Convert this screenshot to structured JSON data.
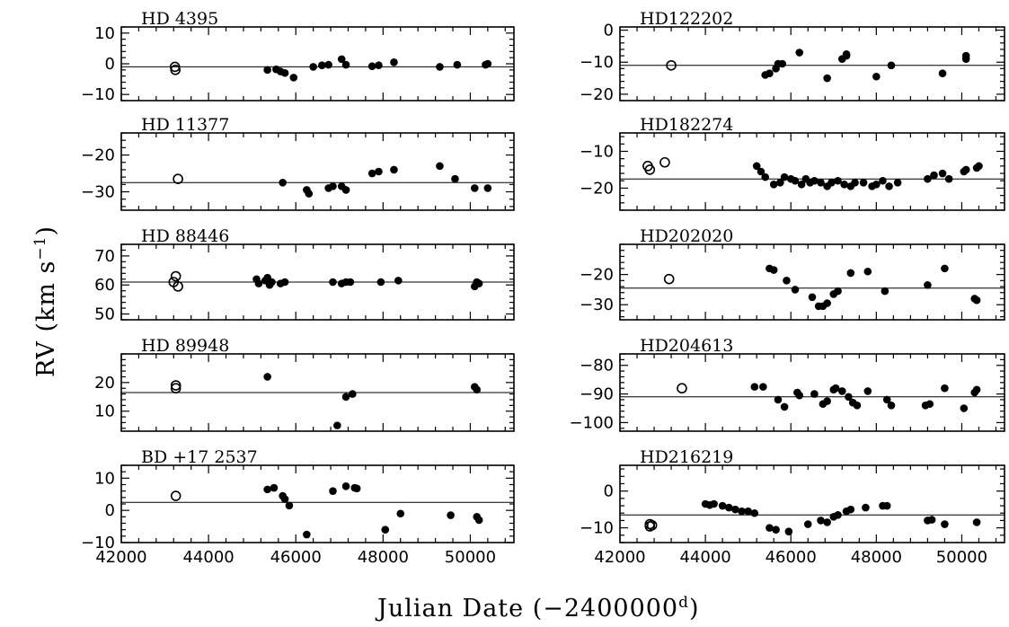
{
  "figure": {
    "xlabel": "Julian Date (−2400000",
    "xlabel_sup": "d",
    "xlabel_close": ")",
    "ylabel": "RV (km s",
    "ylabel_sup": "−1",
    "ylabel_close": ")"
  },
  "chart_data": [
    {
      "type": "scatter",
      "title": "HD  4395",
      "xlim": [
        42000,
        51000
      ],
      "ylim": [
        -12,
        12
      ],
      "y_ticks": [
        -10,
        0,
        10
      ],
      "x_ticks": [
        42000,
        44000,
        46000,
        48000,
        50000
      ],
      "mean": -1,
      "open": [
        [
          43230,
          -1.0
        ],
        [
          43240,
          -2.0
        ]
      ],
      "filled": [
        [
          45350,
          -2.0
        ],
        [
          45550,
          -1.8
        ],
        [
          45650,
          -2.5
        ],
        [
          45750,
          -3.0
        ],
        [
          45950,
          -4.5
        ],
        [
          46400,
          -1.0
        ],
        [
          46600,
          -0.5
        ],
        [
          46750,
          -0.3
        ],
        [
          47050,
          1.5
        ],
        [
          47150,
          -0.3
        ],
        [
          47750,
          -0.8
        ],
        [
          47900,
          -0.5
        ],
        [
          48250,
          0.5
        ],
        [
          49300,
          -1.0
        ],
        [
          49700,
          -0.3
        ],
        [
          50350,
          -0.3
        ],
        [
          50400,
          0.0
        ]
      ]
    },
    {
      "type": "scatter",
      "title": "HD122202",
      "xlim": [
        42000,
        51000
      ],
      "ylim": [
        -22,
        1
      ],
      "y_ticks": [
        -20,
        -10,
        0
      ],
      "x_ticks": [
        42000,
        44000,
        46000,
        48000,
        50000
      ],
      "mean": -11,
      "open": [
        [
          43200,
          -11.0
        ]
      ],
      "filled": [
        [
          45400,
          -14.0
        ],
        [
          45500,
          -13.5
        ],
        [
          45650,
          -12.0
        ],
        [
          45700,
          -10.5
        ],
        [
          45800,
          -10.5
        ],
        [
          46200,
          -7.0
        ],
        [
          46850,
          -15.0
        ],
        [
          47200,
          -9.0
        ],
        [
          47300,
          -7.5
        ],
        [
          47300,
          -8.0
        ],
        [
          48000,
          -14.5
        ],
        [
          48350,
          -11.0
        ],
        [
          49550,
          -13.5
        ],
        [
          50100,
          -9.0
        ],
        [
          50100,
          -8.0
        ]
      ]
    },
    {
      "type": "scatter",
      "title": "HD 11377",
      "xlim": [
        42000,
        51000
      ],
      "ylim": [
        -35,
        -14
      ],
      "y_ticks": [
        -30,
        -20
      ],
      "x_ticks": [
        42000,
        44000,
        46000,
        48000,
        50000
      ],
      "mean": -27.5,
      "open": [
        [
          43300,
          -26.5
        ]
      ],
      "filled": [
        [
          45700,
          -27.5
        ],
        [
          46250,
          -29.5
        ],
        [
          46300,
          -30.5
        ],
        [
          46750,
          -29.0
        ],
        [
          46850,
          -28.5
        ],
        [
          47050,
          -28.5
        ],
        [
          47150,
          -29.5
        ],
        [
          47750,
          -25.0
        ],
        [
          47900,
          -24.5
        ],
        [
          48250,
          -24.0
        ],
        [
          49300,
          -23.0
        ],
        [
          49650,
          -26.5
        ],
        [
          50100,
          -29.0
        ],
        [
          50400,
          -29.0
        ]
      ]
    },
    {
      "type": "scatter",
      "title": "HD182274",
      "xlim": [
        42000,
        51000
      ],
      "ylim": [
        -26,
        -5
      ],
      "y_ticks": [
        -20,
        -10
      ],
      "x_ticks": [
        42000,
        44000,
        46000,
        48000,
        50000
      ],
      "mean": -17.5,
      "open": [
        [
          42650,
          -14.0
        ],
        [
          42700,
          -15.0
        ],
        [
          43050,
          -13.0
        ]
      ],
      "filled": [
        [
          45200,
          -14.0
        ],
        [
          45300,
          -15.5
        ],
        [
          45400,
          -17.0
        ],
        [
          45600,
          -19.0
        ],
        [
          45750,
          -18.5
        ],
        [
          45850,
          -17.0
        ],
        [
          46000,
          -17.5
        ],
        [
          46100,
          -18.0
        ],
        [
          46250,
          -19.0
        ],
        [
          46350,
          -17.5
        ],
        [
          46450,
          -18.5
        ],
        [
          46550,
          -18.0
        ],
        [
          46700,
          -18.5
        ],
        [
          46850,
          -19.5
        ],
        [
          46950,
          -18.5
        ],
        [
          47100,
          -18.0
        ],
        [
          47250,
          -19.0
        ],
        [
          47400,
          -19.5
        ],
        [
          47500,
          -18.5
        ],
        [
          47700,
          -18.5
        ],
        [
          47900,
          -19.5
        ],
        [
          48000,
          -19.0
        ],
        [
          48150,
          -18.0
        ],
        [
          48300,
          -19.5
        ],
        [
          48500,
          -18.5
        ],
        [
          49200,
          -17.5
        ],
        [
          49350,
          -16.5
        ],
        [
          49550,
          -16.0
        ],
        [
          49700,
          -17.5
        ],
        [
          50050,
          -15.5
        ],
        [
          50100,
          -15.0
        ],
        [
          50350,
          -14.5
        ],
        [
          50400,
          -14.0
        ]
      ]
    },
    {
      "type": "scatter",
      "title": "HD 88446",
      "xlim": [
        42000,
        51000
      ],
      "ylim": [
        48,
        74
      ],
      "y_ticks": [
        50,
        60,
        70
      ],
      "x_ticks": [
        42000,
        44000,
        46000,
        48000,
        50000
      ],
      "mean": 61,
      "open": [
        [
          43200,
          61.0
        ],
        [
          43250,
          63.0
        ],
        [
          43300,
          59.5
        ]
      ],
      "filled": [
        [
          45100,
          62.0
        ],
        [
          45150,
          60.5
        ],
        [
          45300,
          61.5
        ],
        [
          45350,
          62.5
        ],
        [
          45400,
          60.0
        ],
        [
          45450,
          61.0
        ],
        [
          45650,
          60.5
        ],
        [
          45750,
          61.0
        ],
        [
          46850,
          61.0
        ],
        [
          47050,
          60.5
        ],
        [
          47150,
          61.0
        ],
        [
          47250,
          61.0
        ],
        [
          47950,
          61.0
        ],
        [
          48350,
          61.5
        ],
        [
          50100,
          59.5
        ],
        [
          50150,
          61.0
        ],
        [
          50200,
          60.5
        ]
      ]
    },
    {
      "type": "scatter",
      "title": "HD202020",
      "xlim": [
        42000,
        51000
      ],
      "ylim": [
        -35,
        -10
      ],
      "y_ticks": [
        -30,
        -20
      ],
      "x_ticks": [
        42000,
        44000,
        46000,
        48000,
        50000
      ],
      "mean": -24.5,
      "open": [
        [
          43150,
          -21.5
        ]
      ],
      "filled": [
        [
          45500,
          -18.0
        ],
        [
          45600,
          -18.5
        ],
        [
          45900,
          -22.0
        ],
        [
          46100,
          -25.0
        ],
        [
          46500,
          -27.5
        ],
        [
          46650,
          -30.5
        ],
        [
          46750,
          -30.5
        ],
        [
          46850,
          -29.5
        ],
        [
          47000,
          -26.5
        ],
        [
          47100,
          -25.5
        ],
        [
          47400,
          -19.5
        ],
        [
          47800,
          -19.0
        ],
        [
          48200,
          -25.5
        ],
        [
          49200,
          -23.5
        ],
        [
          49600,
          -18.0
        ],
        [
          50300,
          -28.0
        ],
        [
          50350,
          -28.5
        ]
      ]
    },
    {
      "type": "scatter",
      "title": "HD 89948",
      "xlim": [
        42000,
        51000
      ],
      "ylim": [
        3,
        30
      ],
      "y_ticks": [
        10,
        20
      ],
      "x_ticks": [
        42000,
        44000,
        46000,
        48000,
        50000
      ],
      "mean": 16.5,
      "open": [
        [
          43250,
          19.0
        ],
        [
          43250,
          18.0
        ]
      ],
      "filled": [
        [
          45350,
          22.0
        ],
        [
          46950,
          5.0
        ],
        [
          47150,
          15.0
        ],
        [
          47300,
          16.0
        ],
        [
          50100,
          18.5
        ],
        [
          50150,
          17.5
        ]
      ]
    },
    {
      "type": "scatter",
      "title": "HD204613",
      "xlim": [
        42000,
        51000
      ],
      "ylim": [
        -103,
        -76
      ],
      "y_ticks": [
        -100,
        -90,
        -80
      ],
      "x_ticks": [
        42000,
        44000,
        46000,
        48000,
        50000
      ],
      "mean": -91,
      "open": [
        [
          43450,
          -88.0
        ]
      ],
      "filled": [
        [
          45150,
          -87.5
        ],
        [
          45350,
          -87.5
        ],
        [
          45700,
          -92.0
        ],
        [
          45850,
          -94.5
        ],
        [
          46150,
          -89.5
        ],
        [
          46200,
          -90.5
        ],
        [
          46550,
          -90.0
        ],
        [
          46750,
          -93.5
        ],
        [
          46850,
          -92.5
        ],
        [
          47000,
          -88.5
        ],
        [
          47050,
          -88.0
        ],
        [
          47200,
          -89.0
        ],
        [
          47350,
          -91.0
        ],
        [
          47450,
          -93.0
        ],
        [
          47550,
          -94.0
        ],
        [
          47800,
          -89.0
        ],
        [
          48250,
          -92.0
        ],
        [
          48350,
          -94.0
        ],
        [
          49150,
          -94.0
        ],
        [
          49250,
          -93.5
        ],
        [
          49600,
          -88.0
        ],
        [
          50050,
          -95.0
        ],
        [
          50300,
          -89.5
        ],
        [
          50350,
          -88.5
        ]
      ]
    },
    {
      "type": "scatter",
      "title": "BD +17 2537",
      "xlim": [
        42000,
        51000
      ],
      "ylim": [
        -10,
        14
      ],
      "y_ticks": [
        -10,
        0,
        10
      ],
      "x_ticks": [
        42000,
        44000,
        46000,
        48000,
        50000
      ],
      "mean": 2.5,
      "open": [
        [
          43250,
          4.5
        ]
      ],
      "filled": [
        [
          45350,
          6.5
        ],
        [
          45500,
          7.0
        ],
        [
          45700,
          4.5
        ],
        [
          45750,
          3.5
        ],
        [
          45850,
          1.5
        ],
        [
          46250,
          -7.5
        ],
        [
          46850,
          6.0
        ],
        [
          47150,
          7.5
        ],
        [
          47350,
          7.0
        ],
        [
          47400,
          6.8
        ],
        [
          48050,
          -6.0
        ],
        [
          48400,
          -1.0
        ],
        [
          49550,
          -1.5
        ],
        [
          50150,
          -2.0
        ],
        [
          50200,
          -3.0
        ]
      ]
    },
    {
      "type": "scatter",
      "title": "HD216219",
      "xlim": [
        42000,
        51000
      ],
      "ylim": [
        -14,
        7
      ],
      "y_ticks": [
        -10,
        0
      ],
      "x_ticks": [
        42000,
        44000,
        46000,
        48000,
        50000
      ],
      "mean": -6.5,
      "open": [
        [
          42700,
          -9.0
        ],
        [
          42700,
          -9.6
        ],
        [
          42750,
          -9.3
        ]
      ],
      "filled": [
        [
          44000,
          -3.5
        ],
        [
          44100,
          -3.8
        ],
        [
          44200,
          -3.5
        ],
        [
          44400,
          -4.0
        ],
        [
          44550,
          -4.5
        ],
        [
          44700,
          -5.0
        ],
        [
          44850,
          -5.5
        ],
        [
          45000,
          -5.5
        ],
        [
          45150,
          -6.0
        ],
        [
          45500,
          -10.0
        ],
        [
          45650,
          -10.5
        ],
        [
          45950,
          -11.0
        ],
        [
          46400,
          -9.0
        ],
        [
          46700,
          -8.0
        ],
        [
          46850,
          -8.5
        ],
        [
          47000,
          -7.0
        ],
        [
          47100,
          -6.5
        ],
        [
          47300,
          -5.5
        ],
        [
          47400,
          -5.0
        ],
        [
          47750,
          -4.5
        ],
        [
          48150,
          -4.0
        ],
        [
          48250,
          -4.0
        ],
        [
          49200,
          -8.0
        ],
        [
          49300,
          -7.8
        ],
        [
          49600,
          -9.0
        ],
        [
          50350,
          -8.5
        ]
      ]
    }
  ]
}
